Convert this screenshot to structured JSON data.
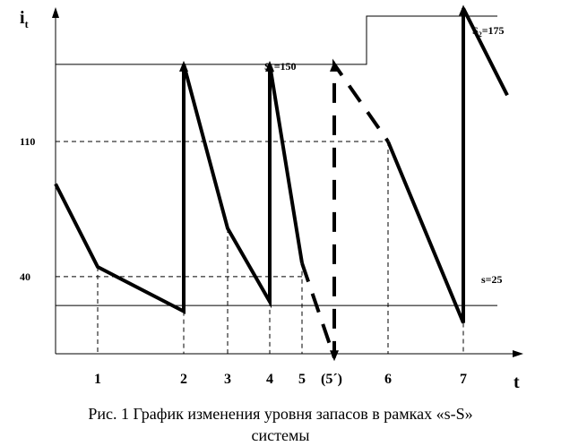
{
  "chart_data": {
    "type": "line",
    "ylabel": "i",
    "ylabel_sub": "t",
    "xlabel": "t",
    "ylim": [
      0,
      185
    ],
    "y_ticks": [
      {
        "value": 110,
        "label": "110"
      },
      {
        "value": 40,
        "label": "40"
      }
    ],
    "x_ticks": [
      {
        "value": 1,
        "label": "1"
      },
      {
        "value": 2,
        "label": "2"
      },
      {
        "value": 3,
        "label": "3"
      },
      {
        "value": 4,
        "label": "4"
      },
      {
        "value": 5,
        "label": "5"
      },
      {
        "value": 5.5,
        "label": "(5´)"
      },
      {
        "value": 6,
        "label": "6"
      },
      {
        "value": 7,
        "label": "7"
      }
    ],
    "levels": {
      "S1": {
        "label": "S",
        "sub": "1",
        "rest": "=150",
        "value": 150
      },
      "S2": {
        "label": "S",
        "sub": "2",
        "rest": "=175",
        "value": 175
      },
      "s": {
        "label": "s=25",
        "value": 25
      }
    },
    "series": [
      {
        "style": "solid",
        "points": [
          [
            0,
            88
          ],
          [
            1,
            45
          ],
          [
            2,
            22
          ],
          [
            2,
            150
          ],
          [
            3,
            65
          ],
          [
            4,
            27
          ],
          [
            4,
            150
          ],
          [
            4.75,
            47
          ]
        ]
      },
      {
        "style": "dashed",
        "points": [
          [
            4.75,
            47
          ],
          [
            5.5,
            -2
          ],
          [
            5.5,
            150
          ],
          [
            6,
            110
          ]
        ]
      },
      {
        "style": "solid",
        "points": [
          [
            6,
            110
          ],
          [
            7,
            16
          ],
          [
            7,
            179
          ],
          [
            7.6,
            134
          ]
        ]
      }
    ]
  },
  "caption": {
    "line1": "Рис. 1 График изменения уровня запасов в рамках «s-S»",
    "line2": "системы"
  }
}
